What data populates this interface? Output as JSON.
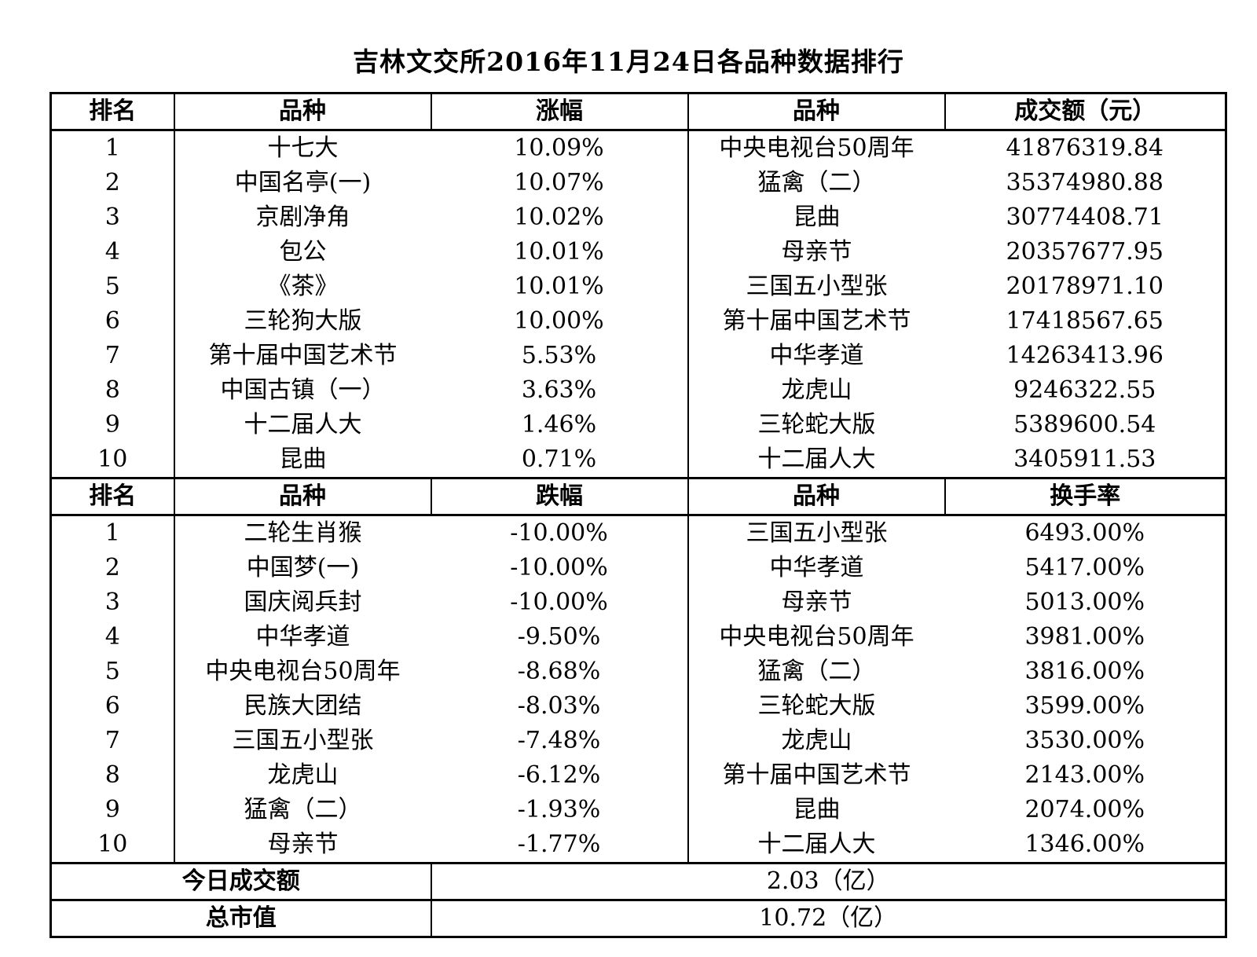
{
  "title": "吉林文交所2016年11月24日各品种数据排行",
  "top_header": [
    "排名",
    "品种",
    "涨幅",
    "品种",
    "成交额（元）"
  ],
  "top_rows": [
    {
      "rank": "1",
      "gain_item": "十七大",
      "gain": "10.09%",
      "vol_item": "中央电视台50周年",
      "vol": "41876319.84"
    },
    {
      "rank": "2",
      "gain_item": "中国名亭(一)",
      "gain": "10.07%",
      "vol_item": "猛禽（二）",
      "vol": "35374980.88"
    },
    {
      "rank": "3",
      "gain_item": "京剧净角",
      "gain": "10.02%",
      "vol_item": "昆曲",
      "vol": "30774408.71"
    },
    {
      "rank": "4",
      "gain_item": "包公",
      "gain": "10.01%",
      "vol_item": "母亲节",
      "vol": "20357677.95"
    },
    {
      "rank": "5",
      "gain_item": "《茶》",
      "gain": "10.01%",
      "vol_item": "三国五小型张",
      "vol": "20178971.10"
    },
    {
      "rank": "6",
      "gain_item": "三轮狗大版",
      "gain": "10.00%",
      "vol_item": "第十届中国艺术节",
      "vol": "17418567.65"
    },
    {
      "rank": "7",
      "gain_item": "第十届中国艺术节",
      "gain": "5.53%",
      "vol_item": "中华孝道",
      "vol": "14263413.96"
    },
    {
      "rank": "8",
      "gain_item": "中国古镇（一）",
      "gain": "3.63%",
      "vol_item": "龙虎山",
      "vol": "9246322.55"
    },
    {
      "rank": "9",
      "gain_item": "十二届人大",
      "gain": "1.46%",
      "vol_item": "三轮蛇大版",
      "vol": "5389600.54"
    },
    {
      "rank": "10",
      "gain_item": "昆曲",
      "gain": "0.71%",
      "vol_item": "十二届人大",
      "vol": "3405911.53"
    }
  ],
  "bottom_header": [
    "排名",
    "品种",
    "跌幅",
    "品种",
    "换手率"
  ],
  "bottom_rows": [
    {
      "rank": "1",
      "loss_item": "二轮生肖猴",
      "loss": "-10.00%",
      "turn_item": "三国五小型张",
      "turn": "6493.00%"
    },
    {
      "rank": "2",
      "loss_item": "中国梦(一)",
      "loss": "-10.00%",
      "turn_item": "中华孝道",
      "turn": "5417.00%"
    },
    {
      "rank": "3",
      "loss_item": "国庆阅兵封",
      "loss": "-10.00%",
      "turn_item": "母亲节",
      "turn": "5013.00%"
    },
    {
      "rank": "4",
      "loss_item": "中华孝道",
      "loss": "-9.50%",
      "turn_item": "中央电视台50周年",
      "turn": "3981.00%"
    },
    {
      "rank": "5",
      "loss_item": "中央电视台50周年",
      "loss": "-8.68%",
      "turn_item": "猛禽（二）",
      "turn": "3816.00%"
    },
    {
      "rank": "6",
      "loss_item": "民族大团结",
      "loss": "-8.03%",
      "turn_item": "三轮蛇大版",
      "turn": "3599.00%"
    },
    {
      "rank": "7",
      "loss_item": "三国五小型张",
      "loss": "-7.48%",
      "turn_item": "龙虎山",
      "turn": "3530.00%"
    },
    {
      "rank": "8",
      "loss_item": "龙虎山",
      "loss": "-6.12%",
      "turn_item": "第十届中国艺术节",
      "turn": "2143.00%"
    },
    {
      "rank": "9",
      "loss_item": "猛禽（二）",
      "loss": "-1.93%",
      "turn_item": "昆曲",
      "turn": "2074.00%"
    },
    {
      "rank": "10",
      "loss_item": "母亲节",
      "loss": "-1.77%",
      "turn_item": "十二届人大",
      "turn": "1346.00%"
    }
  ],
  "summary": [
    {
      "label": "今日成交额",
      "value": "2.03（亿）"
    },
    {
      "label": "总市值",
      "value": "10.72（亿）"
    }
  ]
}
